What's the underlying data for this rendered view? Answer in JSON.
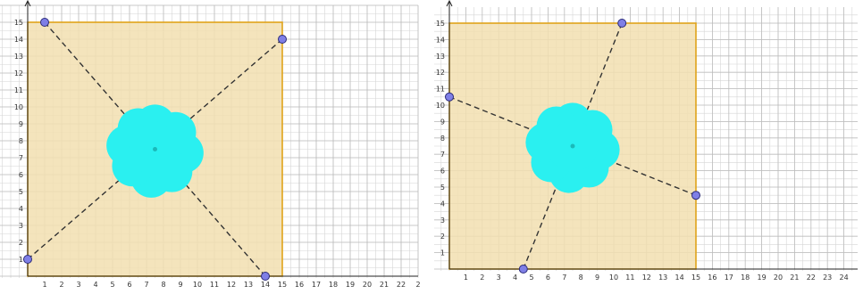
{
  "colors": {
    "grid_minor": "#d6d6d6",
    "grid_major": "#bdbdbd",
    "axis": "#222222",
    "square_fill": "#f2dfb0",
    "square_stroke": "#e0a31a",
    "dash_line": "#333333",
    "point_fill": "#7f7fe6",
    "point_stroke": "#2b2b7a",
    "blob": "#2af0f0"
  },
  "panels": [
    {
      "id": "left",
      "x_labels": [
        "1",
        "2",
        "3",
        "4",
        "5",
        "6",
        "7",
        "8",
        "9",
        "10",
        "11",
        "12",
        "13",
        "14",
        "15",
        "16",
        "17",
        "18",
        "19",
        "20",
        "21",
        "22",
        "2"
      ],
      "y_labels": [
        "1",
        "2",
        "3",
        "4",
        "5",
        "6",
        "7",
        "8",
        "9",
        "10",
        "11",
        "12",
        "13",
        "14",
        "15"
      ],
      "square": {
        "x0": 0,
        "y0": 0,
        "x1": 15,
        "y1": 15
      },
      "center": {
        "x": 7.5,
        "y": 7.5
      },
      "points": [
        {
          "x": 1,
          "y": 15
        },
        {
          "x": 15,
          "y": 14
        },
        {
          "x": 14,
          "y": 0
        },
        {
          "x": 0,
          "y": 1
        }
      ]
    },
    {
      "id": "right",
      "x_labels": [
        "1",
        "2",
        "3",
        "4",
        "5",
        "6",
        "7",
        "8",
        "9",
        "10",
        "11",
        "12",
        "13",
        "14",
        "15",
        "16",
        "17",
        "18",
        "19",
        "20",
        "21",
        "22",
        "23",
        "24"
      ],
      "y_labels": [
        "1",
        "2",
        "3",
        "4",
        "5",
        "6",
        "7",
        "8",
        "9",
        "10",
        "11",
        "12",
        "13",
        "14",
        "15"
      ],
      "square": {
        "x0": 0,
        "y0": 0,
        "x1": 15,
        "y1": 15
      },
      "center": {
        "x": 7.5,
        "y": 7.5
      },
      "points": [
        {
          "x": 10.5,
          "y": 15
        },
        {
          "x": 15,
          "y": 4.5
        },
        {
          "x": 4.5,
          "y": 0
        },
        {
          "x": 0,
          "y": 10.5
        }
      ]
    }
  ]
}
